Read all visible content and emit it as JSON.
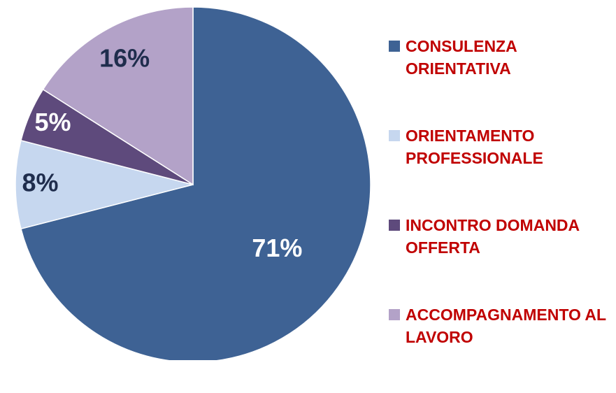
{
  "chart_data": {
    "type": "pie",
    "series": [
      {
        "name": "CONSULENZA ORIENTATIVA",
        "color": "#3e6294",
        "values": [
          71
        ],
        "value_labels": [
          "71%"
        ]
      },
      {
        "name": "ORIENTAMENTO PROFESSIONALE",
        "color": "#c6d7ef",
        "values": [
          8
        ],
        "value_labels": [
          "8%"
        ]
      },
      {
        "name": "INCONTRO DOMANDA OFFERTA",
        "color": "#5e4a7c",
        "values": [
          5
        ],
        "value_labels": [
          "5%"
        ]
      },
      {
        "name": "ACCOMPAGNAMENTO AL LAVORO",
        "color": "#b3a2c8",
        "values": [
          16
        ],
        "value_labels": [
          "16%"
        ]
      }
    ]
  }
}
